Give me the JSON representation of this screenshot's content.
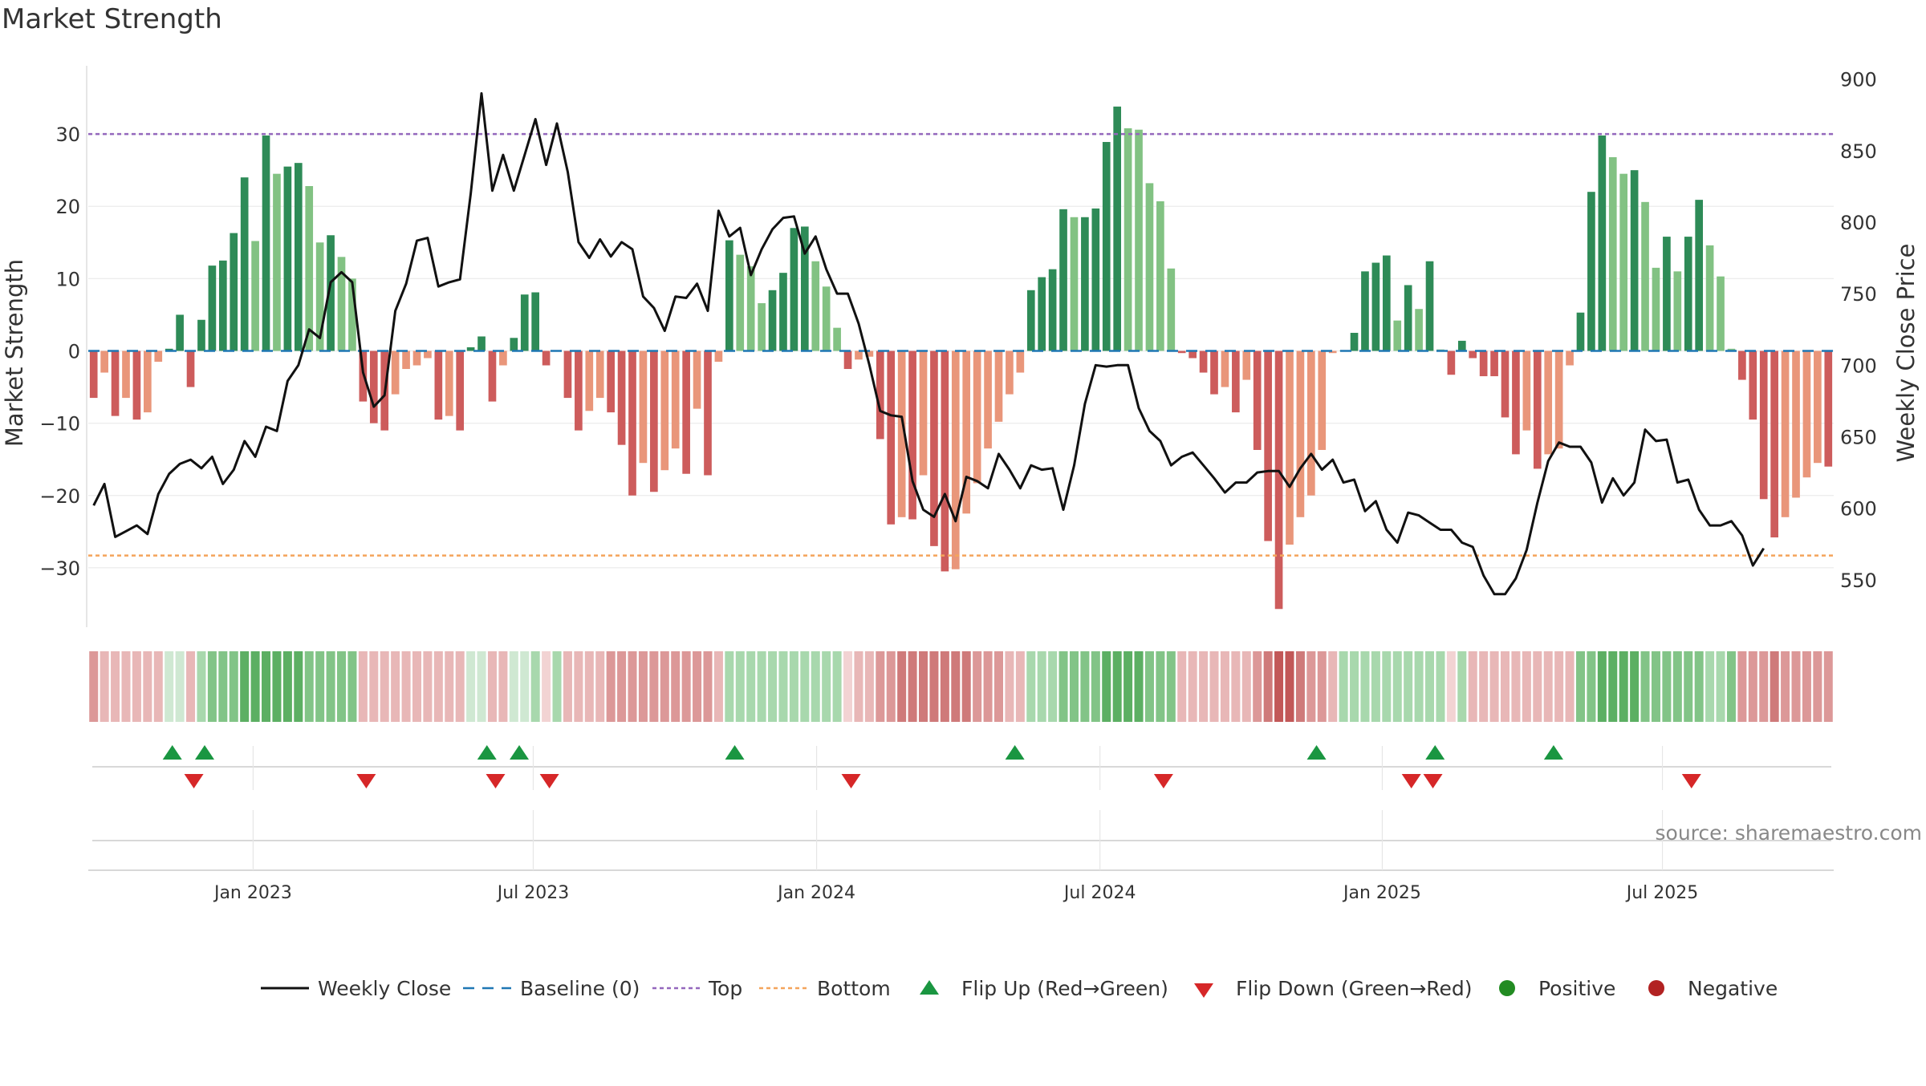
{
  "chart_data": {
    "type": "bar",
    "title": "Market Strength",
    "ylabel": "Market Strength",
    "y2label": "Weekly Close Price",
    "ylim": [
      -38,
      38
    ],
    "y2lim": [
      518,
      902
    ],
    "yticks": [
      -30,
      -20,
      -10,
      0,
      10,
      20,
      30
    ],
    "ytick_labels": [
      "−30",
      "−20",
      "−10",
      "0",
      "10",
      "20",
      "30"
    ],
    "y2ticks": [
      550,
      600,
      650,
      700,
      750,
      800,
      850,
      900
    ],
    "y2tick_labels": [
      "550",
      "600",
      "650",
      "700",
      "750",
      "800",
      "850",
      "900"
    ],
    "top_line": 30,
    "bottom_line": -28.3,
    "baseline": 0,
    "x_start_week": 0,
    "x_end_week": 157,
    "xticks": [
      14.8,
      40.8,
      67.1,
      93.4,
      119.6,
      145.6
    ],
    "xtick_labels": [
      "Jan 2023",
      "Jul 2023",
      "Jan 2024",
      "Jul 2024",
      "Jan 2025",
      "Jul 2025"
    ],
    "strength": [
      -6.5,
      -3,
      -9,
      -6.5,
      -9.5,
      -8.5,
      -1.5,
      0.3,
      5,
      -5,
      4.3,
      11.8,
      12.5,
      16.3,
      24,
      15.2,
      29.8,
      24.5,
      25.5,
      26,
      22.8,
      15,
      16,
      13,
      10,
      -7,
      -10,
      -11,
      -6,
      -2.5,
      -2,
      -1,
      -9.5,
      -9,
      -11,
      0.5,
      2,
      -7,
      -2,
      1.8,
      7.8,
      8.1,
      -2,
      0,
      -6.5,
      -11,
      -8.3,
      -6.5,
      -8.5,
      -13,
      -20,
      -15.5,
      -19.5,
      -16.5,
      -13.5,
      -17,
      -8,
      -17.2,
      -1.5,
      15.3,
      13.3,
      11.7,
      6.6,
      8.4,
      10.8,
      17,
      17.2,
      12.4,
      8.9,
      3.2,
      -2.5,
      -1.2,
      -0.8,
      -12.2,
      -24,
      -23,
      -23.3,
      -17.2,
      -27,
      -30.5,
      -30.2,
      -22.5,
      -18.3,
      -13.5,
      -9.8,
      -6,
      -3,
      8.4,
      10.2,
      11.3,
      19.6,
      18.5,
      18.5,
      19.7,
      28.9,
      33.8,
      30.8,
      30.6,
      23.2,
      20.7,
      11.4,
      -0.3,
      -1,
      -3,
      -6,
      -5,
      -8.5,
      -4,
      -13.7,
      -26.3,
      -35.7,
      -26.8,
      -23,
      -20,
      -13.7,
      -0.3,
      0,
      2.5,
      11,
      12.2,
      13.2,
      4.2,
      9.1,
      5.8,
      12.4,
      0.2,
      -3.3,
      1.4,
      -1,
      -3.5,
      -3.5,
      -9.2,
      -14.3,
      -11,
      -16.3,
      -14.3,
      -13.5,
      -2,
      5.3,
      22,
      29.8,
      26.8,
      24.5,
      25,
      20.6,
      11.5,
      15.8,
      11,
      15.8,
      20.9,
      14.6,
      10.3,
      0.3,
      -4,
      -9.5,
      -20.5,
      -25.8,
      -23,
      -20.3,
      -17.5,
      -15.5,
      -16
    ],
    "close": [
      602,
      617,
      580,
      584,
      588,
      582,
      610,
      624,
      631,
      634,
      628,
      636,
      617,
      627,
      647,
      636,
      657,
      654,
      689,
      700,
      725,
      719,
      758,
      765,
      758,
      695,
      671,
      679,
      738,
      757,
      787,
      789,
      755,
      758,
      760,
      820,
      890,
      822,
      847,
      822,
      847,
      872,
      840,
      869,
      835,
      786,
      775,
      788,
      776,
      786,
      781,
      748,
      740,
      724,
      748,
      747,
      757,
      738,
      808,
      790,
      796,
      763,
      781,
      795,
      803,
      804,
      778,
      790,
      767,
      750,
      750,
      729,
      700,
      668,
      665,
      664,
      619,
      599,
      594,
      610,
      591,
      622,
      619,
      614,
      638,
      627,
      614,
      630,
      627,
      628,
      599,
      630,
      673,
      700,
      699,
      700,
      700,
      670,
      654,
      647,
      630,
      636,
      639,
      630,
      621,
      611,
      618,
      618,
      625,
      626,
      626,
      615,
      628,
      638,
      627,
      634,
      618,
      620,
      598,
      605,
      585,
      576,
      597,
      595,
      590,
      585,
      585,
      576,
      573,
      553,
      540,
      540,
      551,
      571,
      604,
      633,
      646,
      643,
      643,
      632,
      604,
      621,
      609,
      618,
      655,
      647,
      648,
      618,
      620,
      599,
      588,
      588,
      591,
      581,
      560,
      572
    ],
    "band_levels": [
      2,
      1,
      1,
      1,
      1,
      1,
      1,
      0,
      0,
      1,
      1,
      2,
      2,
      2,
      3,
      3,
      3,
      3,
      3,
      3,
      2,
      2,
      2,
      2,
      2,
      1,
      1,
      1,
      1,
      1,
      1,
      1,
      1,
      1,
      1,
      0,
      0,
      1,
      1,
      0,
      0,
      1,
      0,
      1,
      1,
      1,
      1,
      1,
      2,
      2,
      2,
      2,
      2,
      2,
      2,
      2,
      2,
      2,
      1,
      1,
      1,
      1,
      1,
      1,
      1,
      1,
      1,
      1,
      1,
      1,
      0,
      1,
      1,
      2,
      2,
      3,
      3,
      3,
      3,
      3,
      3,
      3,
      2,
      2,
      2,
      1,
      1,
      1,
      1,
      1,
      2,
      2,
      2,
      2,
      3,
      3,
      3,
      3,
      2,
      2,
      2,
      1,
      1,
      1,
      1,
      1,
      1,
      1,
      2,
      3,
      4,
      4,
      3,
      2,
      2,
      1,
      1,
      1,
      1,
      1,
      1,
      1,
      1,
      1,
      1,
      1,
      0,
      1,
      1,
      1,
      1,
      1,
      1,
      1,
      1,
      1,
      1,
      1,
      2,
      2,
      3,
      3,
      3,
      3,
      2,
      2,
      2,
      2,
      2,
      2,
      1,
      1,
      2,
      2,
      2,
      2,
      3,
      2,
      2,
      2,
      2,
      2
    ],
    "flip_up_weeks": [
      7.3,
      10.3,
      36.5,
      39.5,
      59.5,
      85.5,
      113.5,
      124.5,
      135.5
    ],
    "flip_down_weeks": [
      9.3,
      25.3,
      37.3,
      42.3,
      70.3,
      99.3,
      122.3,
      124.3,
      148.3
    ],
    "legend": [
      "Weekly Close",
      "Baseline (0)",
      "Top",
      "Bottom",
      "Flip Up (Red→Green)",
      "Flip Down (Green→Red)",
      "Positive",
      "Negative"
    ],
    "source": "source: sharemaestro.com",
    "colors": {
      "green_dark": "#2e8b57",
      "green_light": "#82c283",
      "red_dark": "#cd5c5c",
      "red_light": "#e9967a",
      "line": "#111111",
      "baseline": "#1f77b4",
      "top": "#9467bd",
      "bottom": "#f4a45b",
      "flip_up": "#1a9641",
      "flip_down": "#d62728",
      "positive": "#228b22",
      "negative": "#b22222",
      "band_green": [
        "#cfe8d2",
        "#a8d8ad",
        "#82c487",
        "#5caf63",
        "#3d9a47"
      ],
      "band_red": [
        "#f2d3d3",
        "#e8b7b7",
        "#dc9898",
        "#cf7a7a",
        "#c25858"
      ]
    }
  }
}
